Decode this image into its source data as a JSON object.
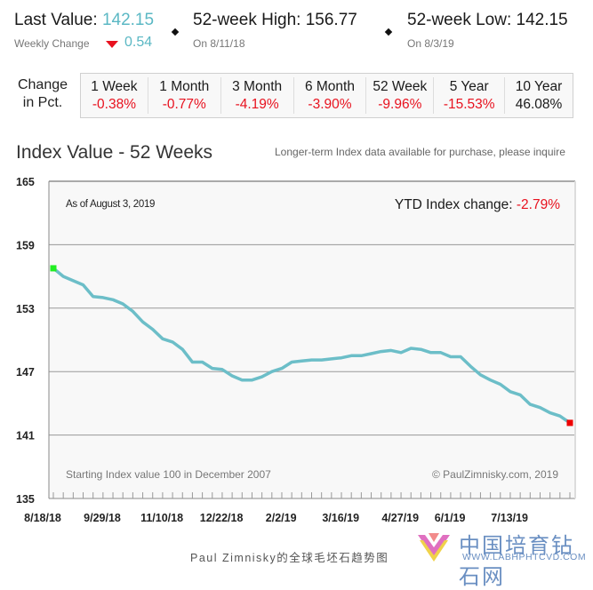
{
  "header": {
    "last_value_label": "Last Value:",
    "last_value": "142.15",
    "weekly_change_label": "Weekly Change",
    "weekly_change_direction": "down",
    "weekly_change_value": "0.54",
    "high_label": "52-week High: 156.77",
    "high_date": "On 8/11/18",
    "low_label": "52-week Low: 142.15",
    "low_date": "On 8/3/19"
  },
  "change_table": {
    "row_label_line1": "Change",
    "row_label_line2": "in Pct.",
    "columns": [
      {
        "period": "1 Week",
        "value": "-0.38%",
        "sign": "neg"
      },
      {
        "period": "1 Month",
        "value": "-0.77%",
        "sign": "neg"
      },
      {
        "period": "3 Month",
        "value": "-4.19%",
        "sign": "neg"
      },
      {
        "period": "6 Month",
        "value": "-3.90%",
        "sign": "neg"
      },
      {
        "period": "52 Week",
        "value": "-9.96%",
        "sign": "neg"
      },
      {
        "period": "5 Year",
        "value": "-15.53%",
        "sign": "neg"
      },
      {
        "period": "10 Year",
        "value": "46.08%",
        "sign": "pos"
      }
    ]
  },
  "section": {
    "title": "Index Value - 52 Weeks",
    "note": "Longer-term Index data available for purchase, please inquire"
  },
  "colors": {
    "line": "#6cbec8",
    "start_marker": "#22ee22",
    "end_marker": "#ee0000",
    "negative": "#e8121f",
    "accent": "#5bb8c4"
  },
  "chart_data": {
    "type": "line",
    "title": "Index Value - 52 Weeks",
    "as_of": "As of August 3, 2019",
    "ytd_label": "YTD Index change:",
    "ytd_value": "-2.79%",
    "bottom_left_note": "Starting Index value 100 in December 2007",
    "bottom_right_note": "© PaulZimnisky.com, 2019",
    "xlabel": "",
    "ylabel": "",
    "ylim": [
      135,
      165
    ],
    "yticks": [
      "165",
      "159",
      "153",
      "147",
      "141",
      "135"
    ],
    "ytick_values": [
      165,
      159,
      153,
      147,
      141,
      135
    ],
    "xtick_labels": [
      "8/18/18",
      "9/29/18",
      "11/10/18",
      "12/22/18",
      "2/2/19",
      "3/16/19",
      "4/27/19",
      "6/1/19",
      "7/13/19"
    ],
    "xtick_indices": [
      0,
      6,
      12,
      18,
      24,
      30,
      36,
      41,
      47
    ],
    "grid": true,
    "series": [
      {
        "name": "Index Value",
        "values": [
          156.77,
          156.0,
          155.6,
          155.2,
          154.1,
          154.0,
          153.8,
          153.4,
          152.7,
          151.7,
          151.0,
          150.1,
          149.8,
          149.1,
          147.9,
          147.9,
          147.3,
          147.2,
          146.6,
          146.2,
          146.2,
          146.5,
          147.0,
          147.3,
          147.9,
          148.0,
          148.1,
          148.1,
          148.2,
          148.3,
          148.5,
          148.5,
          148.7,
          148.9,
          149.0,
          148.8,
          149.2,
          149.1,
          148.8,
          148.8,
          148.4,
          148.4,
          147.5,
          146.7,
          146.2,
          145.8,
          145.1,
          144.8,
          143.9,
          143.6,
          143.1,
          142.8,
          142.15
        ]
      }
    ],
    "start_marker_value": 156.77,
    "end_marker_value": 142.15
  },
  "footer": {
    "caption": "Paul Zimnisky的全球毛坯石趋势图",
    "brand_name": "中国培育钻石网",
    "brand_url": "WWW.LABHPHTCVD.COM"
  }
}
